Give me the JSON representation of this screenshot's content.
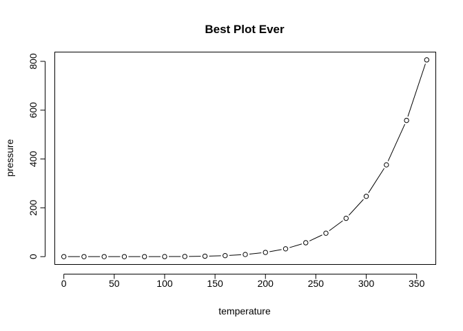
{
  "chart_data": {
    "type": "line",
    "title": "Best Plot Ever",
    "xlabel": "temperature",
    "ylabel": "pressure",
    "xlim": [
      -9,
      369
    ],
    "ylim": [
      -32,
      838
    ],
    "x_ticks": [
      0,
      50,
      100,
      150,
      200,
      250,
      300,
      350
    ],
    "y_ticks": [
      0,
      200,
      400,
      600,
      800
    ],
    "grid": false,
    "x": [
      0,
      20,
      40,
      60,
      80,
      100,
      120,
      140,
      160,
      180,
      200,
      220,
      240,
      260,
      280,
      300,
      320,
      340,
      360
    ],
    "y": [
      0.0002,
      0.0012,
      0.006,
      0.03,
      0.09,
      0.27,
      0.75,
      1.85,
      4.2,
      8.8,
      17.3,
      32.1,
      57,
      96,
      157,
      247,
      376,
      558,
      806
    ]
  }
}
